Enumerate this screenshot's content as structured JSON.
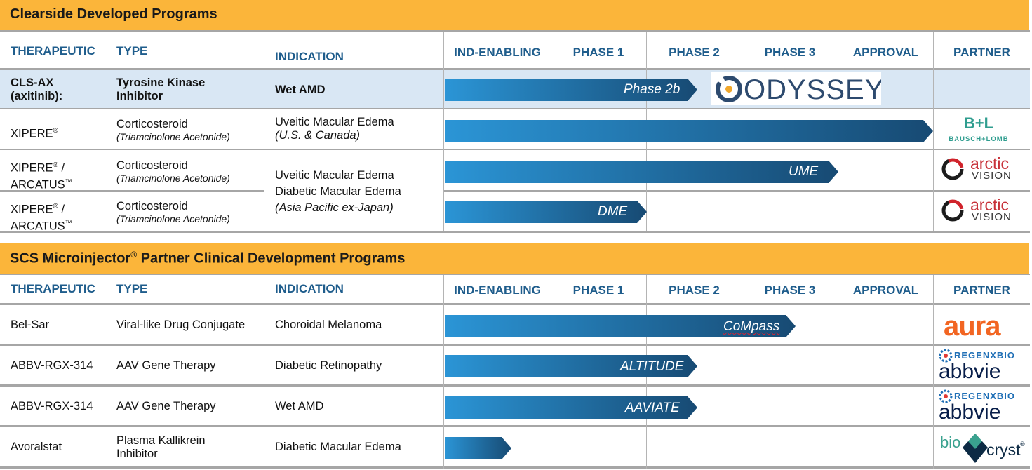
{
  "sections": [
    {
      "title": "Clearside Developed Programs",
      "headers": {
        "therapeutic": "THERAPEUTIC",
        "type": "TYPE",
        "indication": "INDICATION",
        "ind_enabling": "IND-ENABLING",
        "phase1": "PHASE 1",
        "phase2": "PHASE 2",
        "phase3": "PHASE 3",
        "approval": "APPROVAL",
        "partner": "PARTNER"
      },
      "rows": [
        {
          "therapeutic": [
            "CLS-AX",
            "(axitinib):"
          ],
          "type": [
            "Tyrosine Kinase",
            "Inhibitor"
          ],
          "indication": "Wet AMD",
          "bar_label": "Phase 2b",
          "progress_stage": "Phase 2",
          "partner": "ODYSSEY"
        },
        {
          "therapeutic": [
            "XIPERE",
            "®"
          ],
          "type": "Corticosteroid",
          "type_sub": "(Triamcinolone Acetonide)",
          "indication": "Uveitic Macular Edema",
          "indication_sub": "(U.S. & Canada)",
          "bar_label": "",
          "progress_stage": "Approval",
          "partner": "Bausch + Lomb"
        },
        {
          "therapeutic": [
            "XIPERE",
            "®",
            " /",
            "ARCATUS",
            "™"
          ],
          "type": "Corticosteroid",
          "type_sub": "(Triamcinolone Acetonide)",
          "bar_label": "UME",
          "progress_stage": "Phase 3",
          "partner": "Arctic Vision"
        },
        {
          "therapeutic": [
            "XIPERE",
            "®",
            " /",
            "ARCATUS",
            "™"
          ],
          "type": "Corticosteroid",
          "type_sub": "(Triamcinolone Acetonide)",
          "bar_label": "DME",
          "progress_stage": "Phase 1",
          "partner": "Arctic Vision"
        }
      ],
      "shared_indication": [
        "Uveitic Macular Edema",
        "Diabetic Macular Edema",
        "(Asia Pacific ex-Japan)"
      ]
    },
    {
      "title": "SCS Microinjector",
      "title_mark": "®",
      "title_rest": " Partner Clinical Development Programs",
      "headers": {
        "therapeutic": "THERAPEUTIC",
        "type": "TYPE",
        "indication": "INDICATION",
        "ind_enabling": "IND-ENABLING",
        "phase1": "PHASE 1",
        "phase2": "PHASE 2",
        "phase3": "PHASE 3",
        "approval": "APPROVAL",
        "partner": "PARTNER"
      },
      "rows": [
        {
          "therapeutic": "Bel-Sar",
          "type": "Viral-like Drug Conjugate",
          "indication": "Choroidal Melanoma",
          "bar_label": "CoMpass",
          "progress_stage": "Phase 3",
          "partner": "aura"
        },
        {
          "therapeutic": "ABBV-RGX-314",
          "type": "AAV Gene Therapy",
          "indication": "Diabetic Retinopathy",
          "bar_label": "ALTITUDE",
          "progress_stage": "Phase 2",
          "partner": "REGENXBIO / abbvie"
        },
        {
          "therapeutic": "ABBV-RGX-314",
          "type": "AAV Gene Therapy",
          "indication": "Wet AMD",
          "bar_label": "AAVIATE",
          "progress_stage": "Phase 2",
          "partner": "REGENXBIO / abbvie"
        },
        {
          "therapeutic": "Avoralstat",
          "type": [
            "Plasma Kallikrein",
            "Inhibitor"
          ],
          "indication": "Diabetic Macular Edema",
          "bar_label": "",
          "progress_stage": "IND-Enabling",
          "partner": "BioCryst"
        }
      ]
    }
  ],
  "logos": {
    "odyssey": "ODYSSEY",
    "bl_mark": "B+L",
    "bl_text": "BAUSCH+LOMB",
    "arctic_1": "arctic",
    "arctic_2": "VISION",
    "aura": "aura",
    "regenxbio": "REGENXBIO",
    "abbvie": "abbvie",
    "bio": "bio",
    "cryst": "cryst",
    "reg_mark": "®"
  },
  "colors": {
    "banner": "#fbb53a",
    "header_text": "#1f5d8c",
    "bar_start": "#2b95d6",
    "bar_end": "#174a73",
    "row_highlight": "#d9e7f4"
  }
}
